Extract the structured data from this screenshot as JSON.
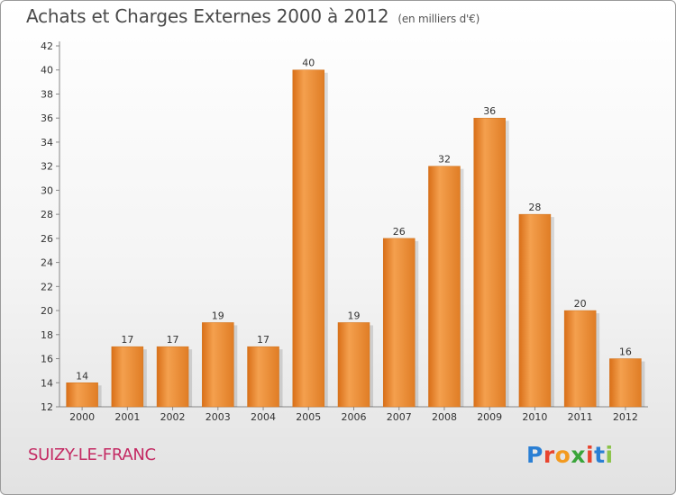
{
  "header": {
    "title": "Achats et Charges Externes 2000 à 2012",
    "subtitle": "(en milliers d'€)"
  },
  "footer": {
    "commune": "SUIZY-LE-FRANC",
    "logo": {
      "letters": [
        "P",
        "r",
        "o",
        "x",
        "i",
        "t",
        "i"
      ],
      "colors": [
        "#2a7fd4",
        "#e8442e",
        "#f39a1f",
        "#3aa53a",
        "#e8442e",
        "#2a7fd4",
        "#8bc34a"
      ]
    }
  },
  "chart_data": {
    "type": "bar",
    "title": "Achats et Charges Externes 2000 à 2012",
    "subtitle": "(en milliers d'€)",
    "categories": [
      "2000",
      "2001",
      "2002",
      "2003",
      "2004",
      "2005",
      "2006",
      "2007",
      "2008",
      "2009",
      "2010",
      "2011",
      "2012"
    ],
    "values": [
      14,
      17,
      17,
      19,
      17,
      40,
      19,
      26,
      32,
      36,
      28,
      20,
      16
    ],
    "ylim": [
      12,
      42
    ],
    "yticks": [
      12,
      14,
      16,
      18,
      20,
      22,
      24,
      26,
      28,
      30,
      32,
      34,
      36,
      38,
      40,
      42
    ],
    "grid": false,
    "bar_color": "#f0903a"
  }
}
